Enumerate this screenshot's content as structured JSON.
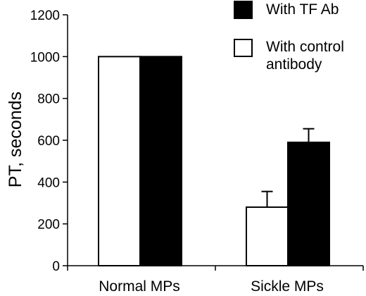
{
  "chart_data": {
    "type": "bar",
    "categories": [
      "Normal MPs",
      "Sickle MPs"
    ],
    "series": [
      {
        "name": "With control antibody",
        "values": [
          1000,
          280
        ],
        "errors": [
          0,
          75
        ],
        "color": "#ffffff"
      },
      {
        "name": "With TF Ab",
        "values": [
          1000,
          590
        ],
        "errors": [
          0,
          65
        ],
        "color": "#000000"
      }
    ],
    "title": "",
    "xlabel": "",
    "ylabel": "PT, seconds",
    "ylim": [
      0,
      1200
    ],
    "yticks": [
      0,
      200,
      400,
      600,
      800,
      1000,
      1200
    ],
    "grid": false,
    "legend": {
      "placement": "top-right",
      "entries": [
        {
          "lines": [
            "With TF Ab"
          ],
          "color": "#000000"
        },
        {
          "lines": [
            "With control",
            "antibody"
          ],
          "color": "#ffffff"
        }
      ]
    }
  }
}
